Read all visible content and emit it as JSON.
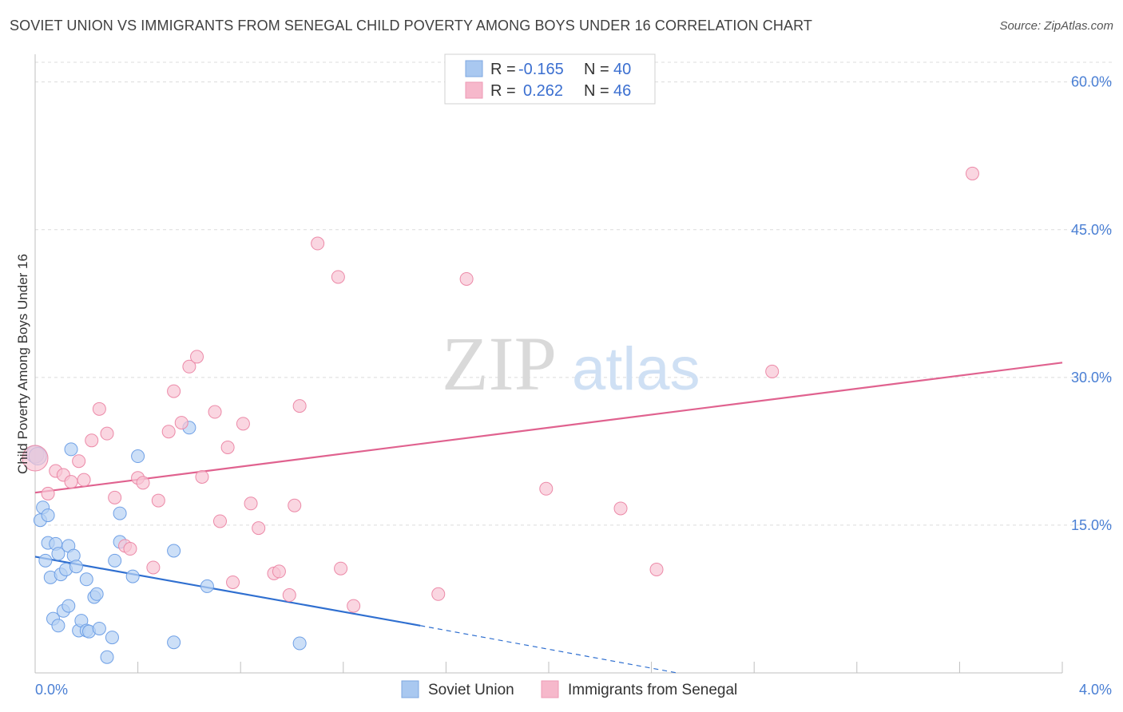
{
  "title": "SOVIET UNION VS IMMIGRANTS FROM SENEGAL CHILD POVERTY AMONG BOYS UNDER 16 CORRELATION CHART",
  "source": "Source: ZipAtlas.com",
  "watermark": {
    "zip": "ZIP",
    "atlas": "atlas"
  },
  "legend": {
    "r_label": "R =",
    "n_label": "N =",
    "rows": [
      {
        "series": "Soviet Union",
        "r": "-0.165",
        "n": "40",
        "color": "#a9c8f0"
      },
      {
        "series": "Immigrants from Senegal",
        "r": "0.262",
        "n": "46",
        "color": "#f6b8cb"
      }
    ]
  },
  "chart_data": {
    "type": "scatter",
    "title": "SOVIET UNION VS IMMIGRANTS FROM SENEGAL CHILD POVERTY AMONG BOYS UNDER 16 CORRELATION CHART",
    "xlabel": "",
    "ylabel": "Child Poverty Among Boys Under 16",
    "x_tick_labels": [
      "0.0%",
      "4.0%"
    ],
    "y_tick_labels": [
      "15.0%",
      "30.0%",
      "45.0%",
      "60.0%"
    ],
    "y_ticks": [
      15,
      30,
      45,
      60
    ],
    "xlim": [
      0,
      4.0
    ],
    "ylim": [
      0,
      62
    ],
    "grid": true,
    "legend_position": "top-center",
    "series": [
      {
        "name": "Soviet Union",
        "color": "#6fa0e6",
        "fill": "#b7d1f3",
        "trend": {
          "x": [
            0.0,
            1.5
          ],
          "y": [
            11.8,
            4.8
          ],
          "dashed_to": [
            2.5,
            0.0
          ],
          "color": "#2f6fd0"
        },
        "points": [
          [
            0.0,
            22.2
          ],
          [
            0.02,
            15.5
          ],
          [
            0.03,
            16.8
          ],
          [
            0.04,
            11.4
          ],
          [
            0.05,
            16.0
          ],
          [
            0.05,
            13.2
          ],
          [
            0.06,
            9.7
          ],
          [
            0.07,
            5.5
          ],
          [
            0.08,
            13.1
          ],
          [
            0.09,
            12.1
          ],
          [
            0.09,
            4.8
          ],
          [
            0.1,
            10.0
          ],
          [
            0.11,
            6.3
          ],
          [
            0.12,
            10.5
          ],
          [
            0.13,
            12.9
          ],
          [
            0.13,
            6.8
          ],
          [
            0.14,
            22.7
          ],
          [
            0.15,
            11.9
          ],
          [
            0.16,
            10.8
          ],
          [
            0.17,
            4.3
          ],
          [
            0.18,
            5.3
          ],
          [
            0.2,
            9.5
          ],
          [
            0.2,
            4.3
          ],
          [
            0.21,
            4.2
          ],
          [
            0.23,
            7.7
          ],
          [
            0.24,
            8.0
          ],
          [
            0.28,
            1.6
          ],
          [
            0.3,
            3.6
          ],
          [
            0.31,
            11.4
          ],
          [
            0.33,
            16.2
          ],
          [
            0.33,
            13.3
          ],
          [
            0.38,
            9.8
          ],
          [
            0.4,
            22.0
          ],
          [
            0.54,
            12.4
          ],
          [
            0.54,
            3.1
          ],
          [
            0.6,
            24.9
          ],
          [
            0.67,
            8.8
          ],
          [
            1.03,
            3.0
          ],
          [
            0.01,
            22.0
          ],
          [
            0.25,
            4.5
          ]
        ]
      },
      {
        "name": "Immigrants from Senegal",
        "color": "#ec8aa8",
        "fill": "#f8c5d4",
        "trend": {
          "x": [
            0.0,
            4.0
          ],
          "y": [
            18.3,
            31.5
          ],
          "color": "#e0628f"
        },
        "points": [
          [
            0.0,
            21.8
          ],
          [
            0.05,
            18.2
          ],
          [
            0.08,
            20.5
          ],
          [
            0.11,
            20.1
          ],
          [
            0.14,
            19.4
          ],
          [
            0.17,
            21.5
          ],
          [
            0.19,
            19.6
          ],
          [
            0.22,
            23.6
          ],
          [
            0.25,
            26.8
          ],
          [
            0.28,
            24.3
          ],
          [
            0.31,
            17.8
          ],
          [
            0.35,
            12.9
          ],
          [
            0.37,
            12.6
          ],
          [
            0.4,
            19.8
          ],
          [
            0.42,
            19.3
          ],
          [
            0.46,
            10.7
          ],
          [
            0.48,
            17.5
          ],
          [
            0.52,
            24.5
          ],
          [
            0.54,
            28.6
          ],
          [
            0.57,
            25.4
          ],
          [
            0.6,
            31.1
          ],
          [
            0.63,
            32.1
          ],
          [
            0.65,
            19.9
          ],
          [
            0.7,
            26.5
          ],
          [
            0.72,
            15.4
          ],
          [
            0.75,
            22.9
          ],
          [
            0.77,
            9.2
          ],
          [
            0.81,
            25.3
          ],
          [
            0.84,
            17.2
          ],
          [
            0.87,
            14.7
          ],
          [
            0.93,
            10.1
          ],
          [
            0.95,
            10.3
          ],
          [
            0.99,
            7.9
          ],
          [
            1.01,
            17.0
          ],
          [
            1.03,
            27.1
          ],
          [
            1.1,
            43.6
          ],
          [
            1.18,
            40.2
          ],
          [
            1.19,
            10.6
          ],
          [
            1.24,
            6.8
          ],
          [
            1.57,
            8.0
          ],
          [
            1.68,
            40.0
          ],
          [
            1.99,
            18.7
          ],
          [
            2.28,
            16.7
          ],
          [
            2.42,
            10.5
          ],
          [
            2.87,
            30.6
          ],
          [
            3.65,
            50.7
          ]
        ]
      }
    ]
  }
}
